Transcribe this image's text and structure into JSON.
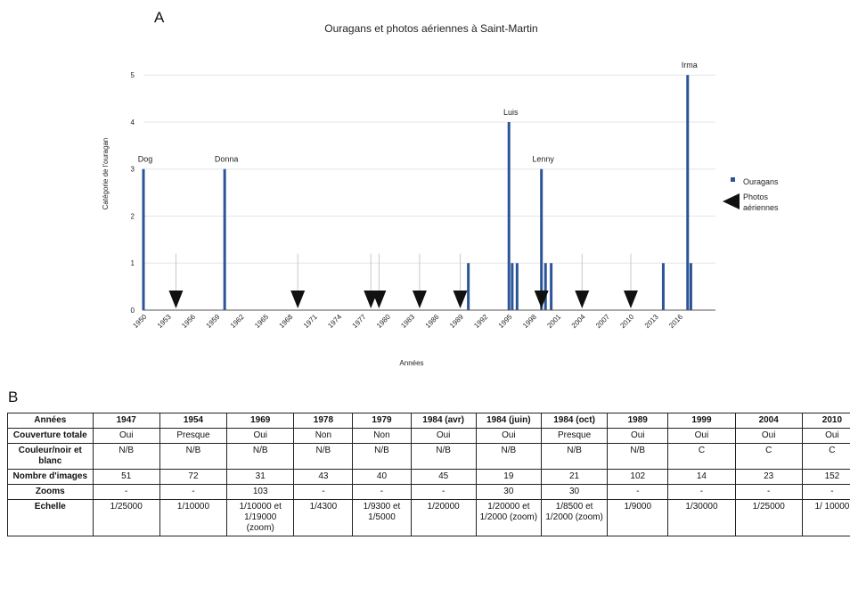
{
  "panel_a_label": "A",
  "panel_b_label": "B",
  "chart_data": {
    "type": "bar",
    "title": "Ouragans et photos aériennes à Saint-Martin",
    "xlabel": "Années",
    "ylabel": "Catégorie de l'ouragan",
    "xlim": [
      1950,
      2019
    ],
    "ylim": [
      0,
      5.8
    ],
    "x_ticks": [
      1950,
      1953,
      1956,
      1959,
      1962,
      1965,
      1968,
      1971,
      1974,
      1977,
      1980,
      1983,
      1986,
      1989,
      1992,
      1995,
      1998,
      2001,
      2004,
      2007,
      2010,
      2013,
      2016
    ],
    "y_ticks": [
      0,
      1,
      2,
      3,
      4,
      5
    ],
    "grid": true,
    "legend_position": "right",
    "colors": {
      "bars": "#2c5597",
      "arrows": "#111111",
      "stems": "#c9c9c9",
      "grid": "#e6e6e6"
    },
    "series": [
      {
        "name": "Ouragans",
        "points": [
          {
            "x": 1950,
            "y": 3,
            "label": "Dog"
          },
          {
            "x": 1960,
            "y": 3,
            "label": "Donna"
          },
          {
            "x": 1990,
            "y": 1
          },
          {
            "x": 1995,
            "y": 4,
            "label": "Luis"
          },
          {
            "x": 1995.4,
            "y": 1
          },
          {
            "x": 1996,
            "y": 1
          },
          {
            "x": 1999,
            "y": 3,
            "label": "Lenny"
          },
          {
            "x": 1999.5,
            "y": 1
          },
          {
            "x": 2000.2,
            "y": 1
          },
          {
            "x": 2014,
            "y": 1
          },
          {
            "x": 2017,
            "y": 5,
            "label": "Irma"
          },
          {
            "x": 2017.4,
            "y": 1
          }
        ]
      },
      {
        "name": "Photos aériennes",
        "x": [
          1954,
          1969,
          1978,
          1979,
          1984,
          1989,
          1999,
          2004,
          2010
        ]
      }
    ],
    "legend": [
      "Ouragans",
      "Photos aériennes"
    ]
  },
  "table": {
    "rows": [
      {
        "head": "Années",
        "cells": [
          "1947",
          "1954",
          "1969",
          "1978",
          "1979",
          "1984 (avr)",
          "1984 (juin)",
          "1984 (oct)",
          "1989",
          "1999",
          "2004",
          "2010"
        ]
      },
      {
        "head": "Couverture totale",
        "cells": [
          "Oui",
          "Presque",
          "Oui",
          "Non",
          "Non",
          "Oui",
          "Oui",
          "Presque",
          "Oui",
          "Oui",
          "Oui",
          "Oui"
        ]
      },
      {
        "head": "Couleur/noir et blanc",
        "cells": [
          "N/B",
          "N/B",
          "N/B",
          "N/B",
          "N/B",
          "N/B",
          "N/B",
          "N/B",
          "N/B",
          "C",
          "C",
          "C"
        ]
      },
      {
        "head": "Nombre d'images",
        "cells": [
          "51",
          "72",
          "31",
          "43",
          "40",
          "45",
          "19",
          "21",
          "102",
          "14",
          "23",
          "152"
        ]
      },
      {
        "head": "Zooms",
        "cells": [
          "-",
          "-",
          "103",
          "-",
          "-",
          "-",
          "30",
          "30",
          "-",
          "-",
          "-",
          "-"
        ]
      },
      {
        "head": "Echelle",
        "cells": [
          "1/25000",
          "1/10000",
          "1/10000 et 1/19000 (zoom)",
          "1/4300",
          "1/9300 et 1/5000",
          "1/20000",
          "1/20000 et 1/2000 (zoom)",
          "1/8500 et 1/2000 (zoom)",
          "1/9000",
          "1/30000",
          "1/25000",
          "1/ 10000"
        ]
      }
    ]
  }
}
